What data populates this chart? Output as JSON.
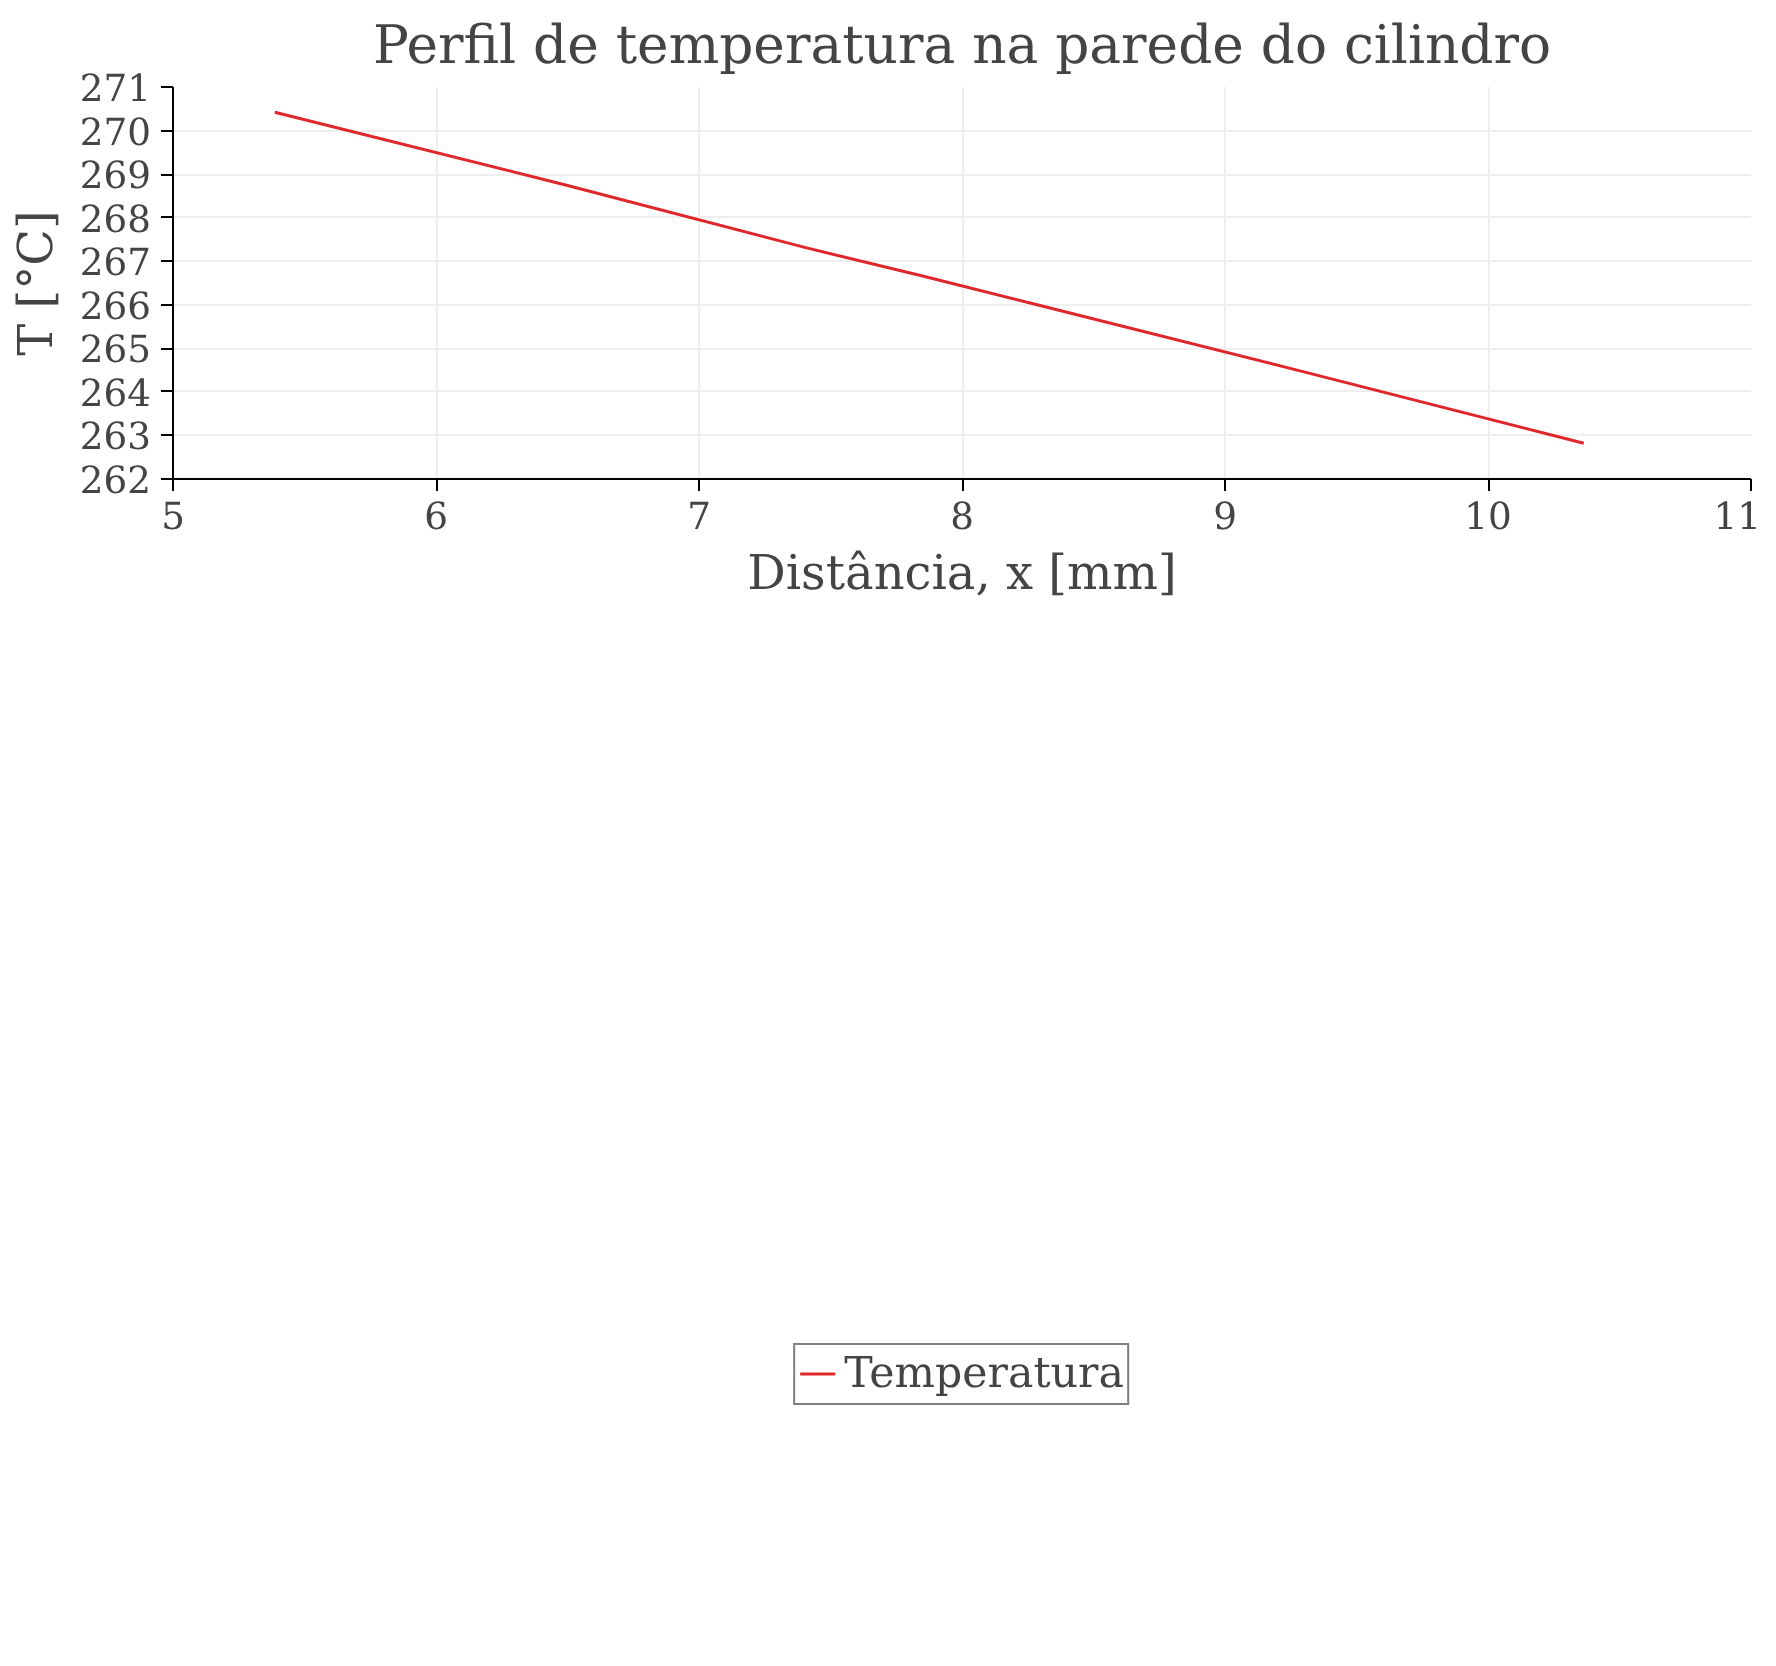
{
  "chart_data": {
    "type": "line",
    "title": "Perfil de temperatura na parede do cilindro",
    "xlabel": "Distância, x [mm]",
    "ylabel": "T [°C]",
    "x": [
      5.387,
      6.5,
      7.413,
      7.85,
      8.293,
      9.3,
      10.364
    ],
    "series": [
      {
        "name": "Temperatura",
        "color": "#e0262a",
        "values": [
          270.42,
          268.74,
          267.3,
          266.66,
          265.99,
          264.46,
          262.82
        ]
      }
    ],
    "xlim": [
      5,
      11
    ],
    "xticks": [
      5,
      6,
      7,
      8,
      9,
      10,
      11
    ],
    "ylim": [
      262,
      271
    ],
    "yticks": [
      262,
      263,
      264,
      265,
      266,
      267,
      268,
      269,
      270,
      271
    ],
    "grid": true,
    "legend": "bottom",
    "line_style": "solid",
    "marker": "none"
  }
}
